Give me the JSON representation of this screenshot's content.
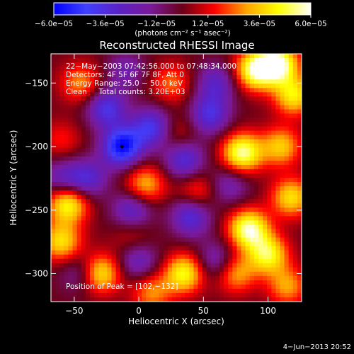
{
  "chart_data": {
    "type": "heatmap",
    "title": "Reconstructed RHESSI Image",
    "xlabel": "Heliocentric X (arcsec)",
    "ylabel": "Heliocentric Y (arcsec)",
    "xlim": [
      -68,
      126
    ],
    "ylim": [
      -322,
      -127
    ],
    "x_ticks": [
      -50,
      0,
      50,
      100
    ],
    "y_ticks": [
      -300,
      -250,
      -200,
      -150
    ],
    "x_tick_labels": [
      "−50",
      "0",
      "50",
      "100"
    ],
    "y_tick_labels": [
      "−300",
      "−250",
      "−200",
      "−150"
    ],
    "grid": false,
    "colorbar": {
      "range": [
        -6e-05,
        6e-05
      ],
      "ticks": [
        -6e-05,
        -3.6e-05,
        -1.2e-05,
        1.2e-05,
        3.6e-05,
        6e-05
      ],
      "tick_labels": [
        "−6.0e−05",
        "−3.6e−05",
        "−1.2e−05",
        "1.2e−05",
        "3.6e−05",
        "6.0e−05"
      ],
      "unit_label": "(photons cm⁻² s⁻¹ asec⁻²)",
      "colors": [
        "#0000ff",
        "#4040ff",
        "#5a22c8",
        "#7a1a9a",
        "#6a0018",
        "#ff0000",
        "#ffa500",
        "#ffff00",
        "#ffffff"
      ]
    },
    "annotations": [
      "22−May−2003 07:42:56.000 to 07:48:34.000",
      "Detectors: 4F 5F 6F 7F 8F, Att 0",
      "Energy Range: 25.0 − 50.0 keV",
      "Clean     Total counts: 3.20E+03",
      "Position of Peak = [102,−132]"
    ],
    "marker": {
      "x": -13,
      "y": -200
    },
    "blobs": [
      {
        "x": 90,
        "y": -140,
        "v": 5.4e-05
      },
      {
        "x": 108,
        "y": -135,
        "v": 5.8e-05
      },
      {
        "x": 120,
        "y": -160,
        "v": 4.2e-05
      },
      {
        "x": 80,
        "y": -205,
        "v": 5.5e-05
      },
      {
        "x": 110,
        "y": -200,
        "v": 3.6e-05
      },
      {
        "x": 118,
        "y": -240,
        "v": 4e-05
      },
      {
        "x": 85,
        "y": -265,
        "v": 5.6e-05
      },
      {
        "x": 100,
        "y": -285,
        "v": 4.6e-05
      },
      {
        "x": 75,
        "y": -300,
        "v": 3.2e-05
      },
      {
        "x": 115,
        "y": -310,
        "v": 3e-05
      },
      {
        "x": -55,
        "y": -245,
        "v": 4.8e-05
      },
      {
        "x": -60,
        "y": -275,
        "v": 4e-05
      },
      {
        "x": -30,
        "y": -300,
        "v": 4.4e-05
      },
      {
        "x": 35,
        "y": -300,
        "v": 4.6e-05
      },
      {
        "x": 10,
        "y": -315,
        "v": 2.8e-05
      },
      {
        "x": -45,
        "y": -150,
        "v": 2.8e-05
      },
      {
        "x": 25,
        "y": -150,
        "v": 2.4e-05
      },
      {
        "x": 5,
        "y": -230,
        "v": 3.4e-05
      },
      {
        "x": 45,
        "y": -235,
        "v": 2.2e-05
      },
      {
        "x": 30,
        "y": -190,
        "v": 1.6e-05
      },
      {
        "x": -60,
        "y": -195,
        "v": 1.6e-05
      },
      {
        "x": -5,
        "y": -270,
        "v": 1.4e-05
      },
      {
        "x": -40,
        "y": -225,
        "v": -3.2e-05
      },
      {
        "x": -13,
        "y": -200,
        "v": -5.8e-05
      },
      {
        "x": -25,
        "y": -170,
        "v": -3.8e-05
      },
      {
        "x": 10,
        "y": -185,
        "v": -4e-05
      },
      {
        "x": 35,
        "y": -210,
        "v": -3.6e-05
      },
      {
        "x": 55,
        "y": -175,
        "v": -3.6e-05
      },
      {
        "x": 60,
        "y": -150,
        "v": -2.8e-05
      },
      {
        "x": 40,
        "y": -255,
        "v": -3.6e-05
      },
      {
        "x": -5,
        "y": -250,
        "v": -3.2e-05
      },
      {
        "x": 60,
        "y": -290,
        "v": -2.4e-05
      },
      {
        "x": -45,
        "y": -300,
        "v": -2e-05
      },
      {
        "x": 0,
        "y": -290,
        "v": -2.6e-05
      },
      {
        "x": -60,
        "y": -225,
        "v": -2.4e-05
      },
      {
        "x": -10,
        "y": -140,
        "v": -2e-05
      },
      {
        "x": 70,
        "y": -230,
        "v": -2.2e-05
      }
    ]
  },
  "footer": {
    "timestamp": "4−Jun−2013 20:52"
  }
}
